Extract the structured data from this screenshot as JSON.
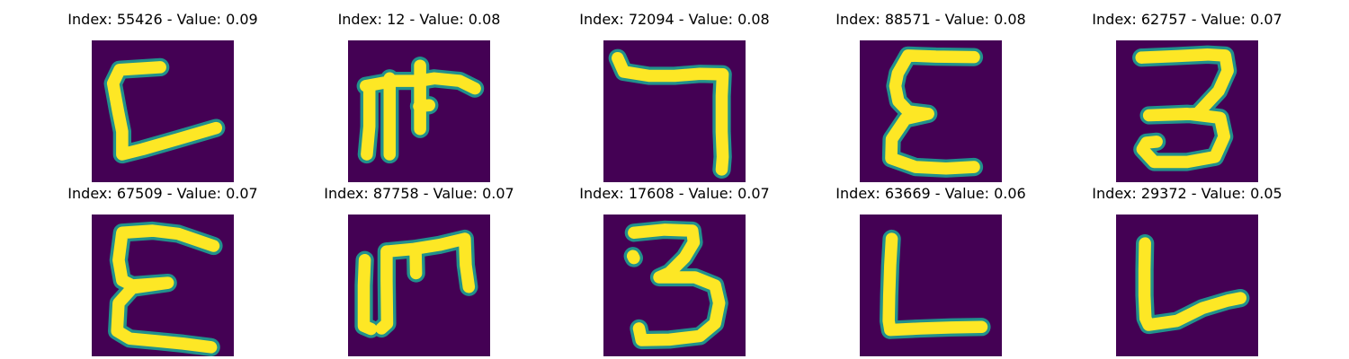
{
  "colors": {
    "background": "#440154",
    "foreground": "#fde725",
    "mid": "#21918c"
  },
  "panels": [
    {
      "index": "55426",
      "value": "0.09",
      "title": "Index: 55426 - Value: 0.09",
      "glyph": "C-shape"
    },
    {
      "index": "12",
      "value": "0.08",
      "title": "Index: 12 - Value: 0.08",
      "glyph": "pi-shape"
    },
    {
      "index": "72094",
      "value": "0.08",
      "title": "Index: 72094 - Value: 0.08",
      "glyph": "seven-shape"
    },
    {
      "index": "88571",
      "value": "0.08",
      "title": "Index: 88571 - Value: 0.08",
      "glyph": "sigma-shape"
    },
    {
      "index": "62757",
      "value": "0.07",
      "title": "Index: 62757 - Value: 0.07",
      "glyph": "three-shape"
    },
    {
      "index": "67509",
      "value": "0.07",
      "title": "Index: 67509 - Value: 0.07",
      "glyph": "E-shape"
    },
    {
      "index": "87758",
      "value": "0.07",
      "title": "Index: 87758 - Value: 0.07",
      "glyph": "m-shape"
    },
    {
      "index": "17608",
      "value": "0.07",
      "title": "Index: 17608 - Value: 0.07",
      "glyph": "three-shape"
    },
    {
      "index": "63669",
      "value": "0.06",
      "title": "Index: 63669 - Value: 0.06",
      "glyph": "L-shape"
    },
    {
      "index": "29372",
      "value": "0.05",
      "title": "Index: 29372 - Value: 0.05",
      "glyph": "L-shape"
    }
  ]
}
